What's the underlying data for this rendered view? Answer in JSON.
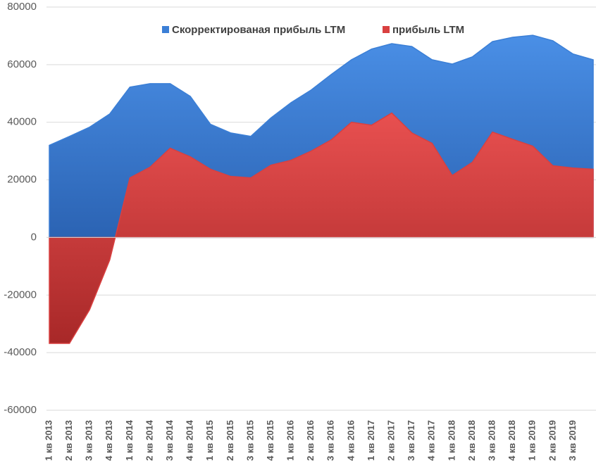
{
  "chart_data": {
    "type": "area",
    "categories": [
      "1 кв 2013",
      "2 кв 2013",
      "3 кв 2013",
      "4 кв 2013",
      "1 кв 2014",
      "2 кв 2014",
      "3 кв 2014",
      "4 кв 2014",
      "1 кв 2015",
      "2 кв 2015",
      "3 кв 2015",
      "4 кв 2015",
      "1 кв 2016",
      "2 кв 2016",
      "3 кв 2016",
      "4 кв 2016",
      "1 кв 2017",
      "2 кв 2017",
      "3 кв 2017",
      "4 кв 2017",
      "1 кв 2018",
      "2 кв 2018",
      "3 кв 2018",
      "4 кв 2018",
      "1 кв 2019",
      "2 кв 2019",
      "3 кв 2019",
      null
    ],
    "series": [
      {
        "name": "Скорректированая прибыль LTM",
        "color": "#3b7fd6",
        "values": [
          32000,
          35100,
          38300,
          42900,
          52200,
          53400,
          53400,
          49000,
          39300,
          36300,
          35100,
          41500,
          46800,
          51200,
          56600,
          61700,
          65400,
          67300,
          66300,
          61700,
          60200,
          62700,
          68000,
          69500,
          70200,
          68300,
          63700,
          61700
        ]
      },
      {
        "name": "прибыль LTM",
        "color": "#d94040",
        "values": [
          -36800,
          -36800,
          -25100,
          -7800,
          20700,
          24400,
          31000,
          28000,
          23700,
          21200,
          20700,
          25100,
          26800,
          30000,
          33900,
          40000,
          39000,
          43200,
          36300,
          32700,
          21500,
          26100,
          36600,
          34100,
          31700,
          24900,
          24100,
          23700
        ]
      }
    ],
    "ylim": [
      -60000,
      80000
    ],
    "yticks": [
      -60000,
      -40000,
      -20000,
      0,
      20000,
      40000,
      60000,
      80000
    ],
    "grid": true,
    "legend": "top"
  }
}
